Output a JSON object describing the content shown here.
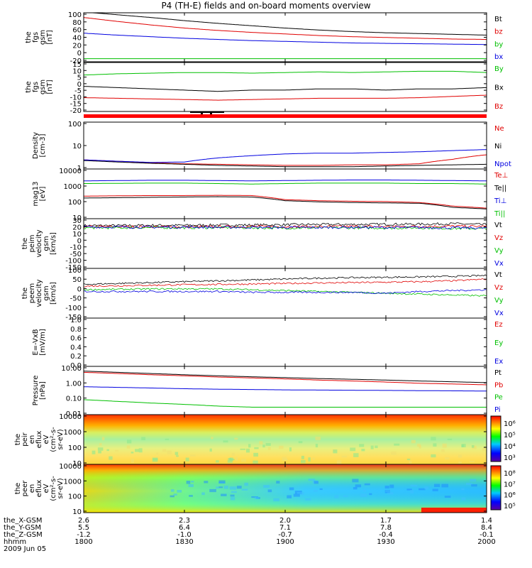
{
  "title": "P4 (TH-E) fields and on-board moments overview",
  "date": "2009 Jun 05",
  "time_axis": {
    "row_labels": [
      "the_X-GSM",
      "the_Y-GSM",
      "the_Z-GSM",
      "hhmm"
    ],
    "columns": [
      {
        "values": [
          "2.6",
          "5.5",
          "-1.2",
          "1800"
        ]
      },
      {
        "values": [
          "2.3",
          "6.4",
          "-1.0",
          "1830"
        ]
      },
      {
        "values": [
          "2.0",
          "7.1",
          "-0.7",
          "1900"
        ]
      },
      {
        "values": [
          "1.7",
          "7.8",
          "-0.4",
          "1930"
        ]
      },
      {
        "values": [
          "1.4",
          "8.4",
          "-0.1",
          "2000"
        ]
      }
    ]
  },
  "panels": [
    {
      "id": "fgs-gsm",
      "ylabel": [
        "the",
        "fgs",
        "gsm",
        "[nT]"
      ],
      "yticks": [
        "100",
        "80",
        "60",
        "40",
        "20",
        "0",
        "-20"
      ],
      "legend": [
        {
          "text": "Bt",
          "color": "#000000"
        },
        {
          "text": "bz",
          "color": "#e00000"
        },
        {
          "text": "by",
          "color": "#00c000"
        },
        {
          "text": "bx",
          "color": "#0000e0"
        }
      ]
    },
    {
      "id": "fgs-dsl",
      "ylabel": [
        "the",
        "fgs",
        "gsm",
        "[nT]"
      ],
      "yticks": [
        "15",
        "10",
        "5",
        "0",
        "-5",
        "-10",
        "-15",
        "-20"
      ],
      "legend": [
        {
          "text": "By",
          "color": "#00c000"
        },
        {
          "text": "Bx",
          "color": "#000000"
        },
        {
          "text": "Bz",
          "color": "#e00000"
        }
      ]
    },
    {
      "id": "density",
      "ylabel": [
        "Density",
        "[cm-3]"
      ],
      "yticks": [
        "100",
        "10",
        "1"
      ],
      "legend": [
        {
          "text": "Ne",
          "color": "#e00000"
        },
        {
          "text": "Ni",
          "color": "#000000"
        },
        {
          "text": "Npot",
          "color": "#0000e0"
        }
      ]
    },
    {
      "id": "temperature",
      "ylabel": [
        "mag13",
        "[eV]"
      ],
      "yticks": [
        "10000",
        "1000",
        "100",
        "10"
      ],
      "legend": [
        {
          "text": "Te⊥",
          "color": "#e00000"
        },
        {
          "text": "Te||",
          "color": "#000000"
        },
        {
          "text": "Ti⊥",
          "color": "#0000e0"
        },
        {
          "text": "Ti||",
          "color": "#00c000"
        }
      ]
    },
    {
      "id": "peim-velocity",
      "ylabel": [
        "the",
        "peim",
        "velocity",
        "gsm",
        "[km/s]"
      ],
      "yticks": [
        "30",
        "20",
        "10",
        "0",
        "-10",
        "-50",
        "-100",
        "-150"
      ],
      "legend": [
        {
          "text": "Vt",
          "color": "#000000"
        },
        {
          "text": "Vz",
          "color": "#e00000"
        },
        {
          "text": "Vy",
          "color": "#00c000"
        },
        {
          "text": "Vx",
          "color": "#0000e0"
        }
      ]
    },
    {
      "id": "peem-velocity",
      "ylabel": [
        "the",
        "peem",
        "velocity",
        "gsm",
        "[km/s]"
      ],
      "yticks": [
        "100",
        "50",
        "0",
        "-50",
        "-100",
        "-150"
      ],
      "legend": [
        {
          "text": "Vt",
          "color": "#000000"
        },
        {
          "text": "Vz",
          "color": "#e00000"
        },
        {
          "text": "Vy",
          "color": "#00c000"
        },
        {
          "text": "Vx",
          "color": "#0000e0"
        }
      ]
    },
    {
      "id": "efield",
      "ylabel": [
        "E=-VxB",
        "[mV/m]"
      ],
      "yticks": [
        "1.0",
        "0.8",
        "0.6",
        "0.4",
        "0.2",
        "0.0"
      ],
      "legend": [
        {
          "text": "Ez",
          "color": "#e00000"
        },
        {
          "text": "Ey",
          "color": "#00c000"
        },
        {
          "text": "Ex",
          "color": "#0000e0"
        }
      ]
    },
    {
      "id": "pressure",
      "ylabel": [
        "Pressure",
        "[nPa]"
      ],
      "yticks": [
        "10.00",
        "1.00",
        "0.10",
        "0.01"
      ],
      "legend": [
        {
          "text": "Pt",
          "color": "#000000"
        },
        {
          "text": "Pb",
          "color": "#e00000"
        },
        {
          "text": "Pe",
          "color": "#00c000"
        },
        {
          "text": "Pi",
          "color": "#0000e0"
        }
      ]
    },
    {
      "id": "peir-spectrogram",
      "ylabel": [
        "the",
        "peir",
        "en",
        "eflux",
        "eV",
        "(cm²-s-",
        "sr-eV)"
      ],
      "yticks": [
        "10000",
        "1000",
        "100",
        "10"
      ],
      "colorbar": [
        "10⁶",
        "10⁵",
        "10⁴",
        "10³"
      ]
    },
    {
      "id": "peer-spectrogram",
      "ylabel": [
        "the",
        "peer",
        "en",
        "eflux",
        "eV",
        "(cm²-s-",
        "sr-eV)"
      ],
      "yticks": [
        "10000",
        "1000",
        "100",
        "10"
      ],
      "colorbar": [
        "10⁸",
        "10⁷",
        "10⁶",
        "10⁵"
      ]
    }
  ],
  "chart_data": {
    "type": "line",
    "x": [
      0,
      10,
      20,
      30,
      40,
      50,
      60,
      70,
      80,
      90,
      100,
      110,
      120
    ],
    "xlabel": "hhmm",
    "panels": [
      {
        "id": "fgs-gsm",
        "ylim": [
          -20,
          105
        ],
        "series": [
          {
            "name": "Bt",
            "color": "#000000",
            "values": [
              107,
              100,
              93,
              85,
              78,
              72,
              66,
              61,
              57,
              54,
              52,
              50,
              48
            ]
          },
          {
            "name": "bz",
            "color": "#e00000",
            "values": [
              93,
              83,
              74,
              66,
              60,
              55,
              51,
              47,
              44,
              42,
              40,
              38,
              37
            ]
          },
          {
            "name": "by",
            "color": "#00c000",
            "values": [
              -12,
              -12,
              -12,
              -12,
              -12,
              -12,
              -12,
              -12,
              -12,
              -12,
              -12,
              -12,
              -12
            ]
          },
          {
            "name": "bx",
            "color": "#0000e0",
            "values": [
              53,
              48,
              44,
              40,
              37,
              34,
              32,
              30,
              28,
              27,
              26,
              25,
              24
            ]
          }
        ]
      },
      {
        "id": "fgs-dsl",
        "ylim": [
          -23,
          16
        ],
        "series": [
          {
            "name": "By",
            "color": "#00c000",
            "values": [
              6,
              7,
              7.5,
              8,
              8,
              7.5,
              8,
              8.5,
              8,
              8.5,
              9,
              9,
              8
            ]
          },
          {
            "name": "Bx",
            "color": "#000000",
            "values": [
              -3,
              -4,
              -5,
              -6,
              -7,
              -6,
              -6,
              -5,
              -5,
              -6,
              -5,
              -5,
              -4
            ]
          },
          {
            "name": "Bz",
            "color": "#e00000",
            "values": [
              -12,
              -12.5,
              -13,
              -13.5,
              -14,
              -13.5,
              -13,
              -12.5,
              -12.5,
              -12.5,
              -12,
              -11,
              -10
            ]
          }
        ]
      },
      {
        "id": "density",
        "ylim": [
          1,
          200
        ],
        "log": true,
        "series": [
          {
            "name": "Ne",
            "color": "#e00000",
            "values": [
              2.8,
              2.4,
              2.0,
              1.8,
              1.7,
              1.6,
              1.5,
              1.5,
              1.6,
              1.6,
              1.8,
              3,
              5
            ]
          },
          {
            "name": "Ni",
            "color": "#000000",
            "values": [
              2.6,
              2.2,
              1.9,
              1.7,
              1.5,
              1.4,
              1.3,
              1.3,
              1.3,
              1.4,
              1.5,
              1.6,
              1.7
            ]
          },
          {
            "name": "Npot",
            "color": "#0000e0",
            "values": [
              2.8,
              2.4,
              2.1,
              2.2,
              3.5,
              4.5,
              5.5,
              6,
              6,
              6.5,
              7,
              8,
              9
            ]
          }
        ]
      },
      {
        "id": "temperature",
        "ylim": [
          10,
          12000
        ],
        "log": true,
        "series": [
          {
            "name": "Te⊥",
            "color": "#e00000",
            "values": [
              250,
              260,
              270,
              270,
              280,
              270,
              150,
              130,
              120,
              115,
              100,
              60,
              45
            ]
          },
          {
            "name": "Te||",
            "color": "#000000",
            "values": [
              190,
              200,
              210,
              220,
              230,
              220,
              130,
              110,
              100,
              95,
              90,
              50,
              40
            ]
          },
          {
            "name": "Ti⊥",
            "color": "#0000e0",
            "values": [
              2200,
              2300,
              2400,
              2400,
              2300,
              2200,
              2300,
              2400,
              2500,
              2500,
              2400,
              2300,
              2200
            ]
          },
          {
            "name": "Ti||",
            "color": "#00c000",
            "values": [
              1500,
              1550,
              1600,
              1600,
              1500,
              1400,
              1500,
              1600,
              1600,
              1600,
              1500,
              1500,
              1400
            ]
          }
        ]
      },
      {
        "id": "peim-velocity",
        "ylim": [
          -150,
          30
        ],
        "series": [
          {
            "name": "Vt",
            "color": "#000000",
            "values": [
              5,
              5,
              6,
              6,
              7,
              7,
              8,
              9,
              9,
              10,
              10,
              12,
              8
            ]
          },
          {
            "name": "Vz",
            "color": "#e00000",
            "values": [
              1,
              1,
              1,
              0,
              1,
              2,
              1,
              1,
              2,
              1,
              2,
              3,
              2
            ]
          },
          {
            "name": "Vy",
            "color": "#00c000",
            "values": [
              -3,
              -3,
              -2,
              -3,
              -2,
              -3,
              -4,
              -3,
              -3,
              -4,
              -3,
              -5,
              -6
            ]
          },
          {
            "name": "Vx",
            "color": "#0000e0",
            "values": [
              0,
              0,
              -1,
              0,
              -1,
              -1,
              -2,
              -2,
              -1,
              -2,
              -2,
              -3,
              -4
            ]
          }
        ]
      },
      {
        "id": "peem-velocity",
        "ylim": [
          -150,
          130
        ],
        "series": [
          {
            "name": "Vt",
            "color": "#000000",
            "values": [
              40,
              45,
              50,
              55,
              60,
              65,
              70,
              75,
              78,
              80,
              82,
              85,
              90
            ]
          },
          {
            "name": "Vz",
            "color": "#e00000",
            "values": [
              30,
              32,
              35,
              38,
              40,
              42,
              45,
              48,
              50,
              52,
              55,
              60,
              70
            ]
          },
          {
            "name": "Vy",
            "color": "#00c000",
            "values": [
              10,
              12,
              14,
              15,
              14,
              10,
              5,
              0,
              -5,
              -10,
              -15,
              -20,
              -25
            ]
          },
          {
            "name": "Vx",
            "color": "#0000e0",
            "values": [
              0,
              0,
              0,
              0,
              0,
              -5,
              -5,
              -5,
              -5,
              -10,
              0,
              5,
              10
            ]
          }
        ]
      },
      {
        "id": "efield",
        "ylim": [
          0,
          1
        ],
        "series": []
      },
      {
        "id": "pressure",
        "ylim": [
          0.01,
          12
        ],
        "log": true,
        "series": [
          {
            "name": "Pt",
            "color": "#000000",
            "values": [
              6,
              5,
              4.2,
              3.5,
              3,
              2.6,
              2.3,
              2,
              1.8,
              1.6,
              1.4,
              1.25,
              1.1
            ]
          },
          {
            "name": "Pb",
            "color": "#e00000",
            "values": [
              5,
              4.2,
              3.5,
              3,
              2.5,
              2.2,
              1.9,
              1.6,
              1.4,
              1.2,
              1.0,
              0.9,
              0.8
            ]
          },
          {
            "name": "Pe",
            "color": "#00c000",
            "values": [
              0.09,
              0.07,
              0.055,
              0.045,
              0.035,
              0.03,
              0.03,
              0.03,
              0.03,
              0.03,
              0.03,
              0.03,
              0.03
            ]
          },
          {
            "name": "Pi",
            "color": "#0000e0",
            "values": [
              0.6,
              0.55,
              0.5,
              0.45,
              0.42,
              0.4,
              0.38,
              0.37,
              0.36,
              0.35,
              0.34,
              0.33,
              0.32
            ]
          }
        ]
      }
    ]
  },
  "colors": {
    "axis": "#000000",
    "fgsStrip": "#ff0000"
  }
}
